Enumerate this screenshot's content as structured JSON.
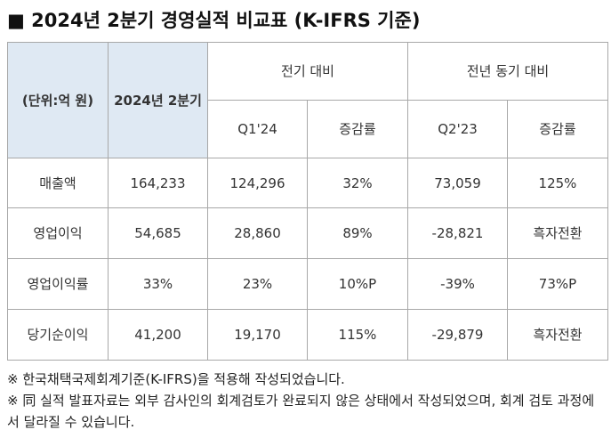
{
  "title": "■ 2024년 2분기 경영실적 비교표 (K-IFRS 기준)",
  "table": {
    "unit_label": "(단위:억 원)",
    "current_header": "2024년 2분기",
    "qoq_group": "전기 대비",
    "yoy_group": "전년 동기 대비",
    "prev_quarter": "Q1'24",
    "qoq_rate": "증감률",
    "prev_year_quarter": "Q2'23",
    "yoy_rate": "증감률",
    "rows": [
      {
        "label": "매출액",
        "current": "164,233",
        "prev_q": "124,296",
        "qoq": "32%",
        "prev_y": "73,059",
        "yoy": "125%"
      },
      {
        "label": "영업이익",
        "current": "54,685",
        "prev_q": "28,860",
        "qoq": "89%",
        "prev_y": "-28,821",
        "yoy": "흑자전환"
      },
      {
        "label": "영업이익률",
        "current": "33%",
        "prev_q": "23%",
        "qoq": "10%P",
        "prev_y": "-39%",
        "yoy": "73%P"
      },
      {
        "label": "당기순이익",
        "current": "41,200",
        "prev_q": "19,170",
        "qoq": "115%",
        "prev_y": "-29,879",
        "yoy": "흑자전환"
      }
    ]
  },
  "notes": [
    "※ 한국채택국제회계기준(K-IFRS)을 적용해 작성되었습니다.",
    "※ 同 실적 발표자료는 외부 감사인의 회계검토가 완료되지 않은 상태에서 작성되었으며, 회계 검토 과정에서 달라질 수 있습니다."
  ]
}
